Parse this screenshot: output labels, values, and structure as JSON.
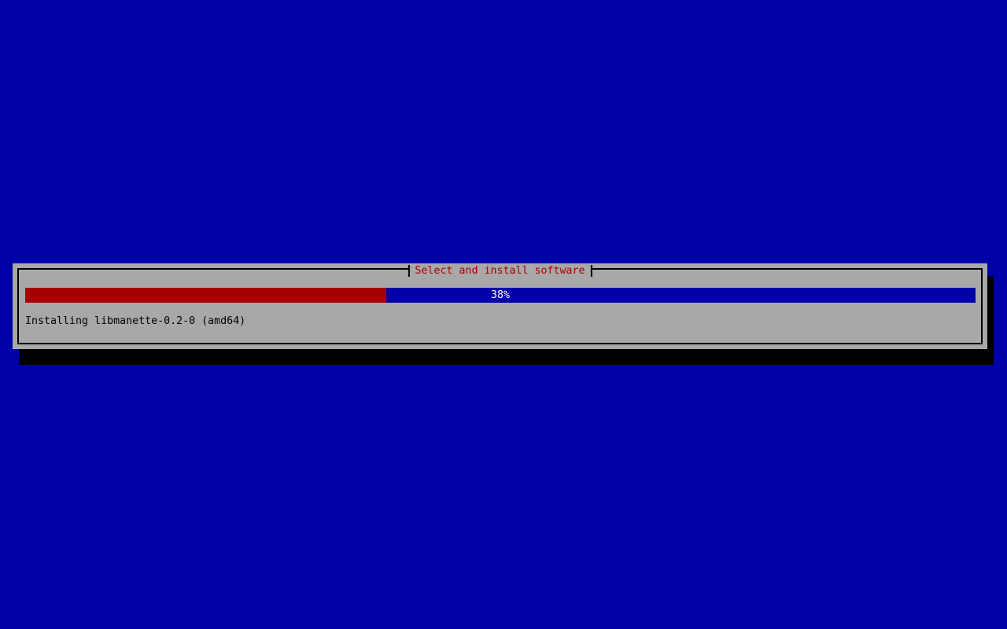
{
  "dialog": {
    "title": "Select and install software",
    "progress": {
      "percent": 38,
      "label": "38%"
    },
    "status_text": "Installing libmanette-0.2-0 (amd64)"
  },
  "colors": {
    "screen_background": "#0000A8",
    "dialog_background": "#A8A8A8",
    "dialog_border": "#000000",
    "shadow": "#000000",
    "title_text": "#A80000",
    "progress_fill": "#A80000",
    "progress_empty": "#0000A8",
    "progress_label_text": "#FFFFFF",
    "status_text": "#000000"
  }
}
